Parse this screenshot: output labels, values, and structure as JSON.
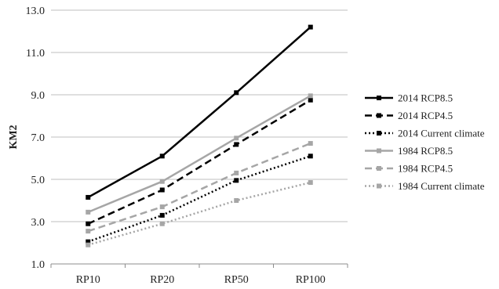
{
  "chart_data": {
    "type": "line",
    "categories": [
      "RP10",
      "RP20",
      "RP50",
      "RP100"
    ],
    "ylabel": "KM2",
    "xlabel": "",
    "ylim": [
      1.0,
      13.0
    ],
    "yticks": [
      "1.0",
      "3.0",
      "5.0",
      "7.0",
      "9.0",
      "11.0",
      "13.0"
    ],
    "grid": "horizontal",
    "legend_position": "right",
    "series": [
      {
        "name": "2014 RCP8.5",
        "values": [
          4.15,
          6.1,
          9.1,
          12.2
        ],
        "color": "#000000",
        "dash": "solid"
      },
      {
        "name": "2014 RCP4.5",
        "values": [
          2.9,
          4.5,
          6.65,
          8.75
        ],
        "color": "#000000",
        "dash": "dashed"
      },
      {
        "name": "2014 Current climate",
        "values": [
          2.05,
          3.3,
          4.95,
          6.1
        ],
        "color": "#000000",
        "dash": "dotted"
      },
      {
        "name": "1984 RCP8.5",
        "values": [
          3.45,
          4.9,
          6.95,
          8.95
        ],
        "color": "#a6a6a6",
        "dash": "solid"
      },
      {
        "name": "1984 RCP4.5",
        "values": [
          2.55,
          3.7,
          5.3,
          6.7
        ],
        "color": "#a6a6a6",
        "dash": "dashed"
      },
      {
        "name": "1984 Current climate",
        "values": [
          1.9,
          2.9,
          4.0,
          4.85
        ],
        "color": "#a6a6a6",
        "dash": "dotted"
      }
    ]
  }
}
